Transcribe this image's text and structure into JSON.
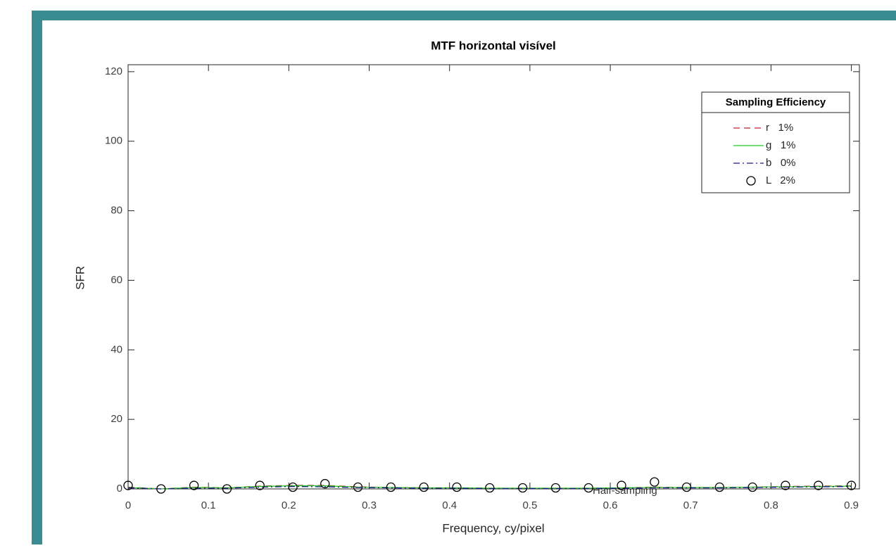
{
  "chart_data": {
    "type": "line",
    "title": "MTF horizontal visível",
    "x_label": "Frequency, cy/pixel",
    "y_label": "SFR",
    "annotation": "Half-sampling",
    "legend_title": "Sampling Efficiency",
    "legend": "upper right",
    "grid": false,
    "xlim": [
      0,
      0.91
    ],
    "ylim": [
      0,
      122
    ],
    "xticks": [
      0,
      0.1,
      0.2,
      0.3,
      0.4,
      0.5,
      0.6,
      0.7,
      0.8,
      0.9
    ],
    "yticks": [
      0,
      20,
      40,
      60,
      80,
      100,
      120
    ],
    "x": [
      0,
      0.041,
      0.082,
      0.123,
      0.164,
      0.205,
      0.245,
      0.286,
      0.327,
      0.368,
      0.409,
      0.45,
      0.491,
      0.532,
      0.573,
      0.614,
      0.655,
      0.695,
      0.736,
      0.777,
      0.818,
      0.859,
      0.9
    ],
    "series": [
      {
        "name": "r   1%",
        "color": "#c0202a",
        "style": "dashed",
        "values": [
          0.5,
          0,
          0.5,
          0.3,
          0.8,
          1,
          1,
          0.6,
          0.4,
          0.3,
          0.3,
          0.2,
          0.2,
          0.2,
          0.2,
          0.3,
          0.5,
          0.4,
          0.4,
          0.5,
          0.7,
          0.8,
          0.9
        ]
      },
      {
        "name": "g   1%",
        "color": "#22cc22",
        "style": "solid",
        "values": [
          0.4,
          0,
          0.4,
          0.3,
          0.7,
          0.9,
          0.9,
          0.5,
          0.4,
          0.3,
          0.3,
          0.2,
          0.2,
          0.2,
          0.2,
          0.3,
          0.4,
          0.4,
          0.4,
          0.5,
          0.6,
          0.7,
          0.8
        ]
      },
      {
        "name": "b   0%",
        "color": "#1a1a8c",
        "style": "dashdot",
        "values": [
          0.3,
          0,
          0.2,
          0.2,
          0.5,
          0.7,
          0.6,
          0.4,
          0.3,
          0.2,
          0.2,
          0.1,
          0.1,
          0.1,
          0.1,
          0.2,
          0.3,
          0.3,
          0.3,
          0.4,
          0.5,
          0.6,
          0.7
        ]
      },
      {
        "name": "L   2%",
        "color": "#000000",
        "style": "markers",
        "values": [
          1,
          0,
          1,
          0,
          1,
          0.5,
          1.5,
          0.5,
          0.5,
          0.5,
          0.5,
          0.3,
          0.3,
          0.3,
          0.3,
          1,
          2,
          0.5,
          0.5,
          0.5,
          1,
          1,
          1
        ]
      }
    ]
  }
}
